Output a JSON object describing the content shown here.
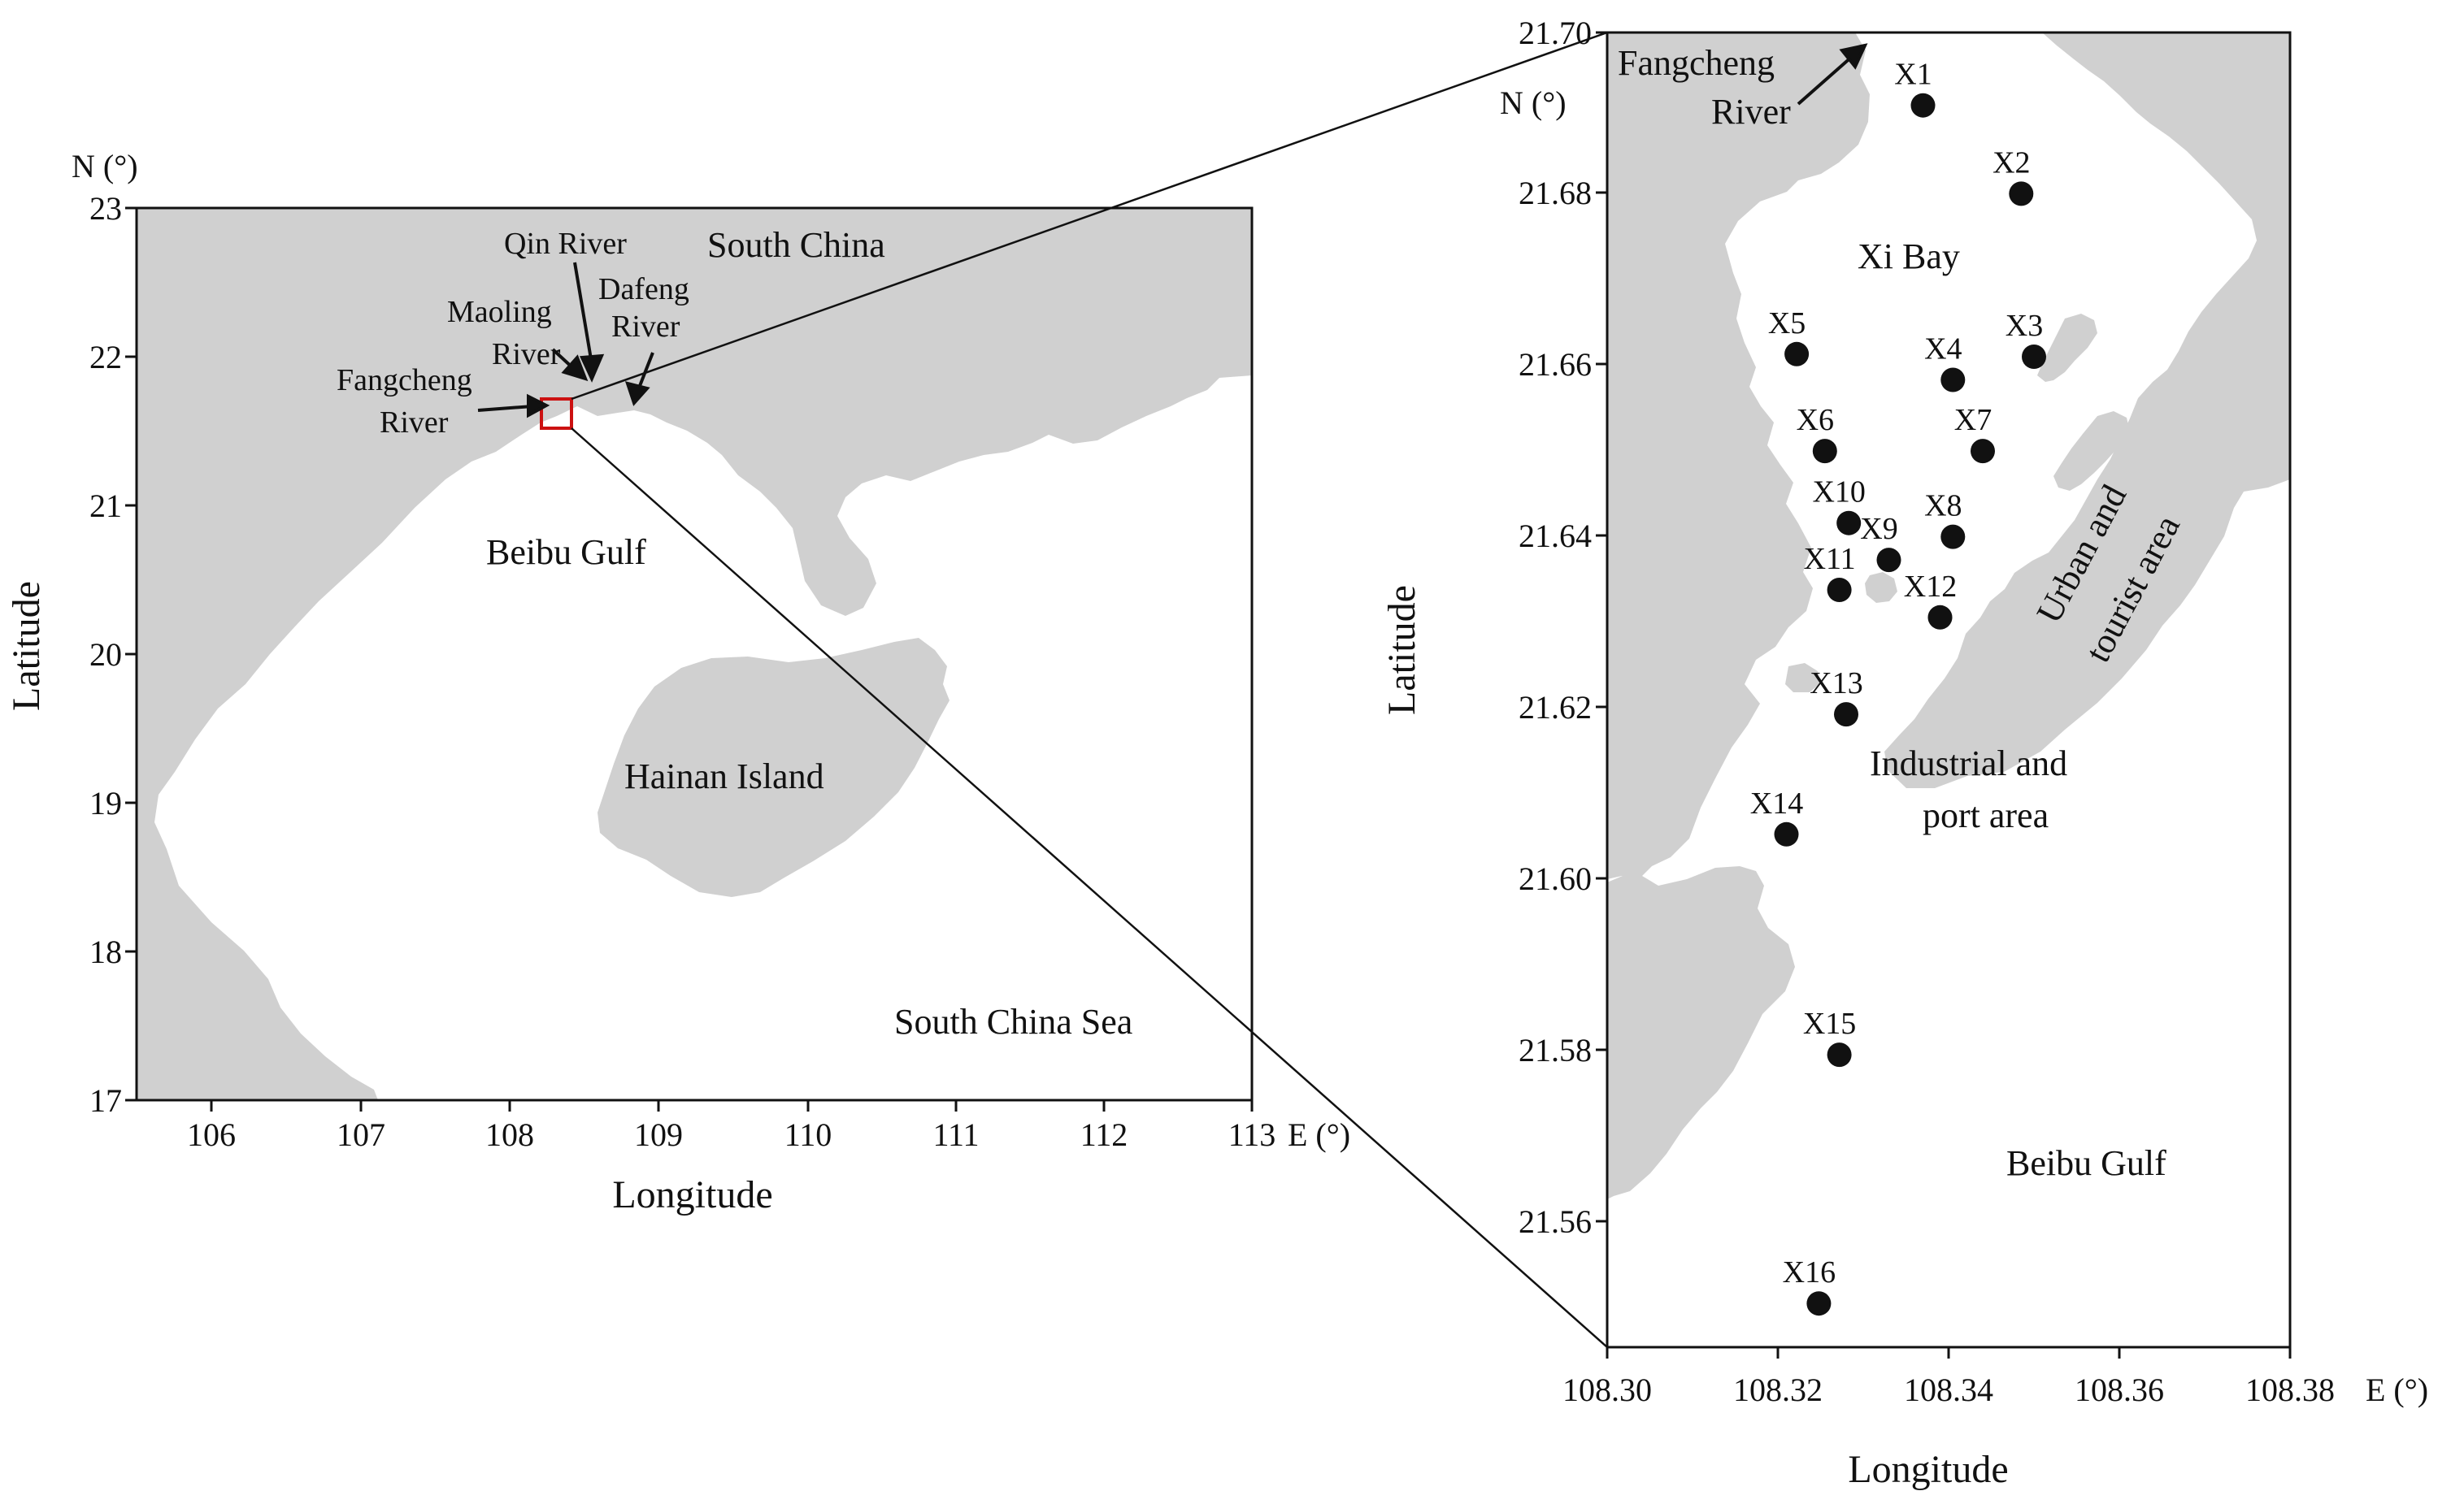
{
  "colors": {
    "land": "#d0d0d0",
    "sea": "#ffffff",
    "site": "#111111",
    "frame": "#111111",
    "highlight": "#cc1111"
  },
  "overview_map": {
    "x_ticks": [
      "106",
      "107",
      "108",
      "109",
      "110",
      "111",
      "112",
      "113"
    ],
    "x_unit": "E (°)",
    "y_ticks": [
      "17",
      "18",
      "19",
      "20",
      "21",
      "22",
      "23"
    ],
    "y_unit": "N (°)",
    "x_title": "Longitude",
    "y_title": "Latitude",
    "labels": {
      "south_china": "South China",
      "beibu_gulf": "Beibu Gulf",
      "hainan_island": "Hainan Island",
      "south_china_sea": "South China Sea",
      "qin_river": "Qin River",
      "maoling_1": "Maoling",
      "maoling_2": "River",
      "dafeng_1": "Dafeng",
      "dafeng_2": "River",
      "fangcheng_1": "Fangcheng",
      "fangcheng_2": "River"
    }
  },
  "detail_map": {
    "x_ticks": [
      "108.30",
      "108.32",
      "108.34",
      "108.36",
      "108.38"
    ],
    "x_unit": "E (°)",
    "y_ticks": [
      "21.56",
      "21.58",
      "21.60",
      "21.62",
      "21.64",
      "21.66",
      "21.68",
      "21.70"
    ],
    "y_unit": "N (°)",
    "x_title": "Longitude",
    "y_title": "Latitude",
    "labels": {
      "fangcheng_1": "Fangcheng",
      "fangcheng_2": "River",
      "xi_bay": "Xi Bay",
      "industrial_1": "Industrial and",
      "industrial_2": "port area",
      "urban_1": "Urban and",
      "urban_2": "tourist area",
      "beibu_gulf": "Beibu Gulf"
    },
    "sites": [
      {
        "name": "X1",
        "lon": 108.337,
        "lat": 21.6915
      },
      {
        "name": "X2",
        "lon": 108.3485,
        "lat": 21.6812
      },
      {
        "name": "X3",
        "lon": 108.35,
        "lat": 21.6622
      },
      {
        "name": "X4",
        "lon": 108.3405,
        "lat": 21.6595
      },
      {
        "name": "X5",
        "lon": 108.3222,
        "lat": 21.6625
      },
      {
        "name": "X6",
        "lon": 108.3255,
        "lat": 21.6512
      },
      {
        "name": "X7",
        "lon": 108.344,
        "lat": 21.6512
      },
      {
        "name": "X8",
        "lon": 108.3405,
        "lat": 21.6412
      },
      {
        "name": "X9",
        "lon": 108.333,
        "lat": 21.6385
      },
      {
        "name": "X10",
        "lon": 108.3283,
        "lat": 21.6428
      },
      {
        "name": "X11",
        "lon": 108.3272,
        "lat": 21.635
      },
      {
        "name": "X12",
        "lon": 108.339,
        "lat": 21.6318
      },
      {
        "name": "X13",
        "lon": 108.328,
        "lat": 21.6205
      },
      {
        "name": "X14",
        "lon": 108.321,
        "lat": 21.6065
      },
      {
        "name": "X15",
        "lon": 108.3272,
        "lat": 21.5808
      },
      {
        "name": "X16",
        "lon": 108.3248,
        "lat": 21.5518
      }
    ]
  }
}
